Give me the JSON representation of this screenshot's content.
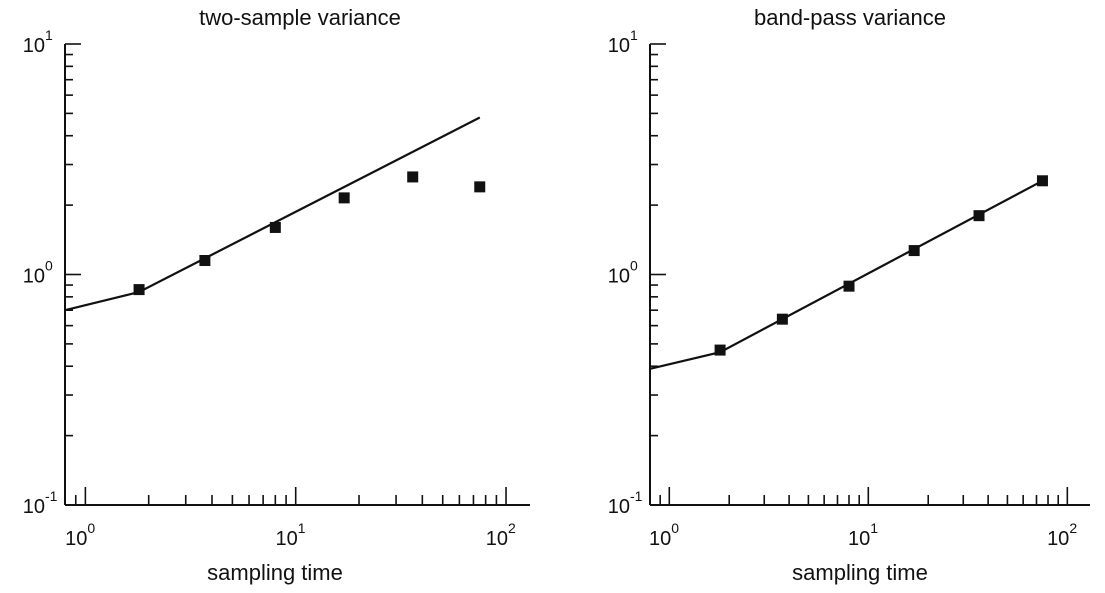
{
  "chart_data": [
    {
      "type": "scatter",
      "title": "two-sample variance",
      "xlabel": "sampling time",
      "ylabel": "",
      "xscale": "log",
      "yscale": "log",
      "xlim": [
        0.8,
        130
      ],
      "ylim": [
        0.1,
        10
      ],
      "x_tick_labels": [
        {
          "base": "10",
          "exp": "0",
          "value": 1
        },
        {
          "base": "10",
          "exp": "1",
          "value": 10
        },
        {
          "base": "10",
          "exp": "2",
          "value": 100
        }
      ],
      "y_tick_labels": [
        {
          "base": "10",
          "exp": "-1",
          "value": 0.1
        },
        {
          "base": "10",
          "exp": "0",
          "value": 1
        },
        {
          "base": "10",
          "exp": "1",
          "value": 10
        }
      ],
      "points": {
        "x": [
          1.8,
          3.7,
          8,
          17,
          36,
          75
        ],
        "y": [
          0.86,
          1.15,
          1.6,
          2.15,
          2.65,
          2.4
        ]
      },
      "fit_line": {
        "x": [
          0.8,
          1.8,
          75
        ],
        "y": [
          0.7,
          0.84,
          4.8
        ]
      },
      "grid": false,
      "legend": "none"
    },
    {
      "type": "scatter",
      "title": "band-pass variance",
      "xlabel": "sampling time",
      "ylabel": "",
      "xscale": "log",
      "yscale": "log",
      "xlim": [
        0.8,
        130
      ],
      "ylim": [
        0.1,
        10
      ],
      "x_tick_labels": [
        {
          "base": "10",
          "exp": "0",
          "value": 1
        },
        {
          "base": "10",
          "exp": "1",
          "value": 10
        },
        {
          "base": "10",
          "exp": "2",
          "value": 100
        }
      ],
      "y_tick_labels": [
        {
          "base": "10",
          "exp": "-1",
          "value": 0.1
        },
        {
          "base": "10",
          "exp": "0",
          "value": 1
        },
        {
          "base": "10",
          "exp": "1",
          "value": 10
        }
      ],
      "points": {
        "x": [
          1.8,
          3.7,
          8,
          17,
          36,
          75
        ],
        "y": [
          0.47,
          0.64,
          0.89,
          1.27,
          1.8,
          2.55
        ]
      },
      "fit_line": {
        "x": [
          0.8,
          1.8,
          75
        ],
        "y": [
          0.39,
          0.46,
          2.55
        ]
      },
      "grid": false,
      "legend": "none"
    }
  ]
}
